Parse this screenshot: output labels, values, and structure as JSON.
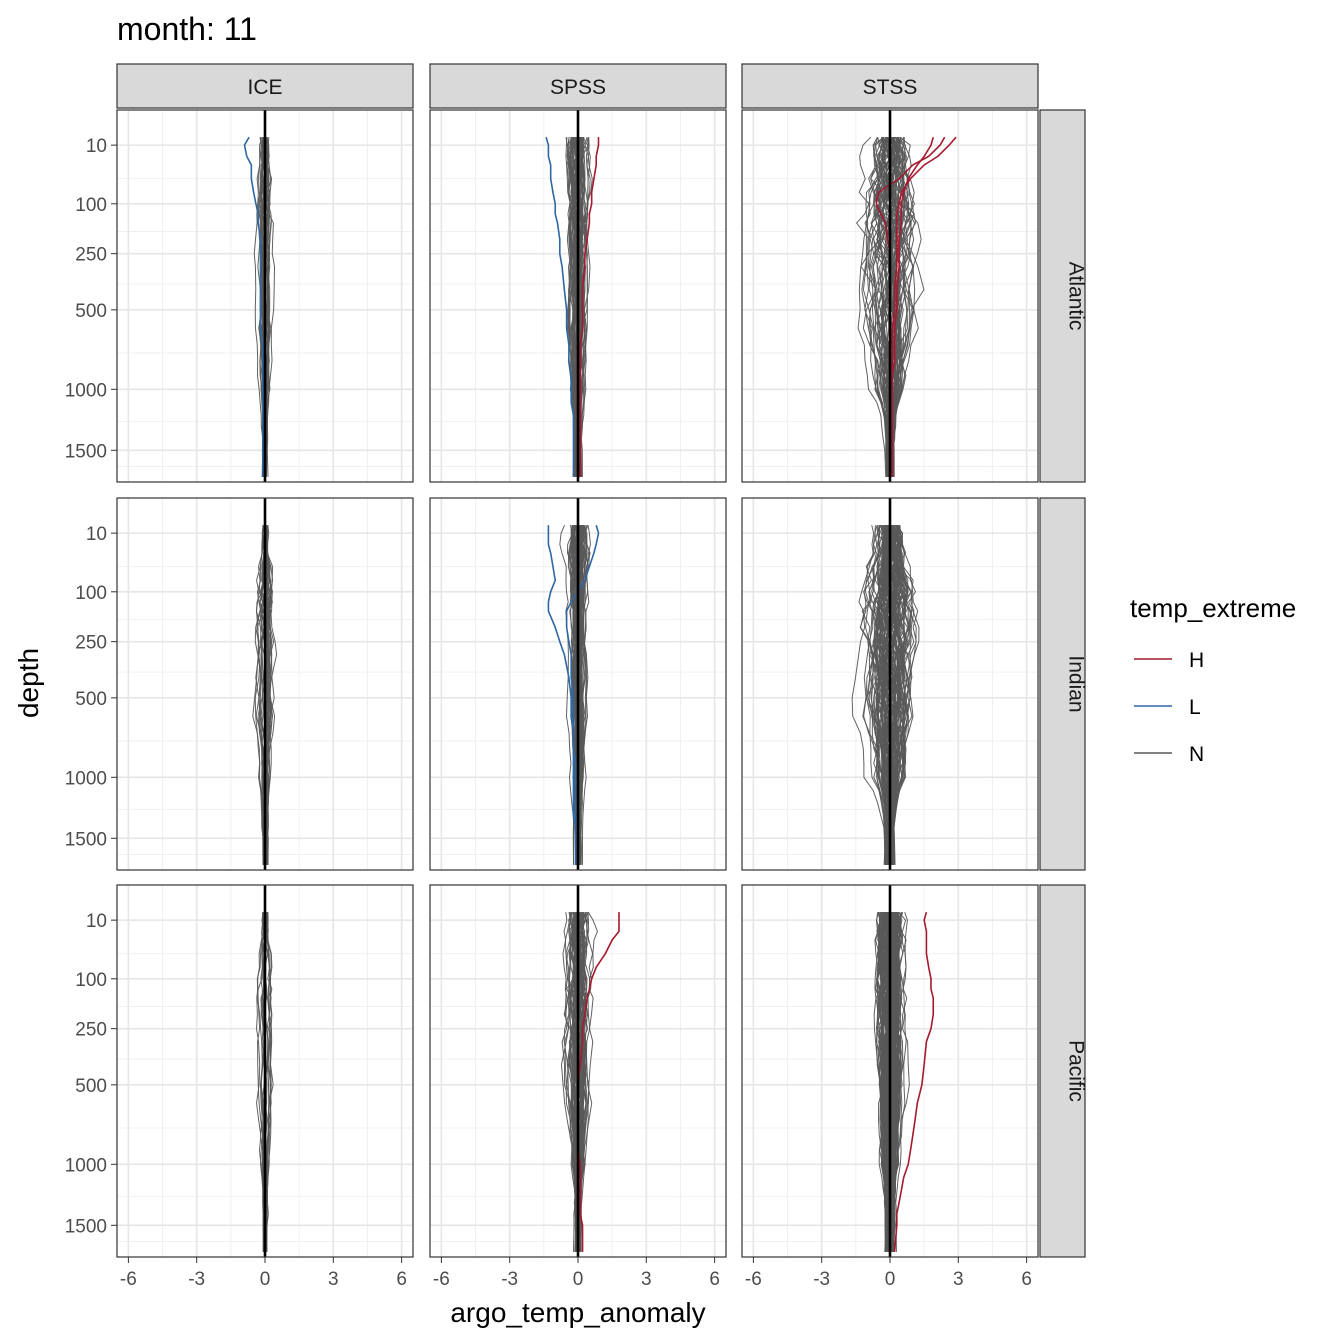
{
  "chart_data": {
    "type": "line",
    "title": "month: 11",
    "xlabel": "argo_temp_anomaly",
    "ylabel": "depth",
    "facet_cols": [
      "ICE",
      "SPSS",
      "STSS"
    ],
    "facet_rows": [
      "Atlantic",
      "Indian",
      "Pacific"
    ],
    "xlim": [
      -6.5,
      6.5
    ],
    "x_ticks": [
      -6,
      -3,
      0,
      3,
      6
    ],
    "x_tick_labels": [
      "-6",
      "-3",
      "0",
      "3",
      "6"
    ],
    "y_scale": "sqrt-reversed",
    "ylim": [
      1800,
      0
    ],
    "y_ticks": [
      10,
      100,
      250,
      500,
      1000,
      1500
    ],
    "y_tick_labels": [
      "10",
      "100",
      "250",
      "500",
      "1000",
      "1500"
    ],
    "depth_levels": [
      5,
      10,
      20,
      30,
      50,
      75,
      100,
      125,
      150,
      200,
      250,
      300,
      400,
      500,
      600,
      700,
      800,
      900,
      1000,
      1100,
      1200,
      1300,
      1400,
      1500,
      1750
    ],
    "reference_line_x": 0,
    "grid": true,
    "legend": {
      "title": "temp_extreme",
      "position": "right",
      "entries": [
        {
          "label": "H",
          "color": "#a6192e"
        },
        {
          "label": "L",
          "color": "#2f67a3"
        },
        {
          "label": "N",
          "color": "#595959"
        }
      ]
    },
    "panels": [
      {
        "row": "Atlantic",
        "col": "ICE",
        "n_profiles": 26,
        "spread_surface": 0.4,
        "spread_mid": 0.6,
        "spread_deep": 0.2,
        "highlights": [
          {
            "temp_extreme": "L",
            "values": [
              -0.7,
              -0.9,
              -0.8,
              -0.6,
              -0.6,
              -0.5,
              -0.4,
              -0.3,
              -0.3,
              -0.2,
              -0.2,
              -0.2,
              -0.2,
              -0.2,
              -0.2,
              -0.1,
              -0.1,
              -0.1,
              -0.1,
              -0.1,
              -0.1,
              -0.1,
              -0.1,
              -0.1,
              -0.1
            ]
          }
        ]
      },
      {
        "row": "Atlantic",
        "col": "SPSS",
        "n_profiles": 60,
        "spread_surface": 0.7,
        "spread_mid": 0.6,
        "spread_deep": 0.25,
        "highlights": [
          {
            "temp_extreme": "L",
            "values": [
              -1.4,
              -1.3,
              -1.3,
              -1.2,
              -1.2,
              -1.1,
              -1.0,
              -1.0,
              -0.9,
              -0.8,
              -0.8,
              -0.7,
              -0.6,
              -0.5,
              -0.5,
              -0.4,
              -0.4,
              -0.3,
              -0.3,
              -0.3,
              -0.2,
              -0.2,
              -0.2,
              -0.2,
              -0.2
            ]
          },
          {
            "temp_extreme": "H",
            "values": [
              0.9,
              0.9,
              0.8,
              0.8,
              0.7,
              0.6,
              0.6,
              0.5,
              0.5,
              0.4,
              0.3,
              0.3,
              0.2,
              0.2,
              0.2,
              0.1,
              0.1,
              0.1,
              0.1,
              0.1,
              0.1,
              0.1,
              0.1,
              0.1,
              0.1
            ]
          }
        ]
      },
      {
        "row": "Atlantic",
        "col": "STSS",
        "n_profiles": 70,
        "spread_surface": 1.3,
        "spread_mid": 1.7,
        "spread_deep": 0.25,
        "highlights": [
          {
            "temp_extreme": "H",
            "values": [
              2.9,
              2.6,
              2.1,
              1.5,
              0.9,
              0.5,
              0.4,
              0.3,
              0.3,
              0.3,
              0.3,
              0.3,
              0.2,
              0.2,
              0.1,
              0.1,
              0.1,
              0.1,
              0.0,
              0.0,
              0.0,
              0.0,
              0.0,
              0.0,
              0.0
            ]
          },
          {
            "temp_extreme": "H",
            "values": [
              1.9,
              1.8,
              1.5,
              1.2,
              0.8,
              0.6,
              0.5,
              0.5,
              0.5,
              0.4,
              0.4,
              0.4,
              0.3,
              0.3,
              0.2,
              0.2,
              0.2,
              0.1,
              0.1,
              0.1,
              0.1,
              0.1,
              0.1,
              0.1,
              0.1
            ]
          },
          {
            "temp_extreme": "H",
            "values": [
              2.4,
              2.2,
              1.7,
              1.0,
              0.4,
              -0.5,
              -0.6,
              -0.4,
              -0.2,
              -0.1,
              0.0,
              0.0,
              0.0,
              0.0,
              0.0,
              0.0,
              0.0,
              0.0,
              0.0,
              0.0,
              0.0,
              0.0,
              0.0,
              0.0,
              0.0
            ]
          }
        ]
      },
      {
        "row": "Indian",
        "col": "ICE",
        "n_profiles": 30,
        "spread_surface": 0.3,
        "spread_mid": 0.8,
        "spread_deep": 0.25,
        "highlights": []
      },
      {
        "row": "Indian",
        "col": "SPSS",
        "n_profiles": 70,
        "spread_surface": 0.7,
        "spread_mid": 0.5,
        "spread_deep": 0.2,
        "highlights": [
          {
            "temp_extreme": "L",
            "values": [
              -1.3,
              -1.3,
              -1.3,
              -1.2,
              -1.1,
              -1.0,
              -1.2,
              -1.3,
              -1.3,
              -1.0,
              -0.8,
              -0.6,
              -0.4,
              -0.3,
              -0.3,
              -0.2,
              -0.2,
              -0.2,
              -0.2,
              -0.2,
              -0.2,
              -0.2,
              -0.1,
              -0.1,
              -0.1
            ]
          },
          {
            "temp_extreme": "L",
            "values": [
              0.8,
              0.9,
              0.8,
              0.7,
              0.5,
              0.3,
              0.0,
              -0.3,
              -0.5,
              -0.5,
              -0.4,
              -0.3,
              -0.3,
              -0.2,
              -0.2,
              -0.2,
              -0.2,
              -0.1,
              -0.1,
              -0.1,
              -0.1,
              -0.1,
              -0.1,
              -0.1,
              -0.1
            ]
          }
        ]
      },
      {
        "row": "Indian",
        "col": "STSS",
        "n_profiles": 110,
        "spread_surface": 0.9,
        "spread_mid": 1.5,
        "spread_deep": 0.25,
        "highlights": []
      },
      {
        "row": "Pacific",
        "col": "ICE",
        "n_profiles": 18,
        "spread_surface": 0.25,
        "spread_mid": 0.5,
        "spread_deep": 0.15,
        "highlights": []
      },
      {
        "row": "Pacific",
        "col": "SPSS",
        "n_profiles": 60,
        "spread_surface": 0.8,
        "spread_mid": 0.8,
        "spread_deep": 0.2,
        "highlights": [
          {
            "temp_extreme": "H",
            "values": [
              1.8,
              1.8,
              1.8,
              1.5,
              1.2,
              0.8,
              0.6,
              0.5,
              0.4,
              0.3,
              0.2,
              0.2,
              0.1,
              0.0,
              0.0,
              0.0,
              0.0,
              0.0,
              0.1,
              0.1,
              0.1,
              0.1,
              0.1,
              0.2,
              0.2
            ]
          }
        ]
      },
      {
        "row": "Pacific",
        "col": "STSS",
        "n_profiles": 140,
        "spread_surface": 0.9,
        "spread_mid": 0.8,
        "spread_deep": 0.3,
        "highlights": [
          {
            "temp_extreme": "H",
            "values": [
              1.6,
              1.5,
              1.6,
              1.6,
              1.6,
              1.7,
              1.8,
              1.8,
              1.9,
              1.9,
              1.8,
              1.6,
              1.5,
              1.4,
              1.2,
              1.1,
              1.0,
              0.9,
              0.8,
              0.6,
              0.5,
              0.4,
              0.3,
              0.3,
              0.2
            ]
          }
        ]
      }
    ]
  }
}
